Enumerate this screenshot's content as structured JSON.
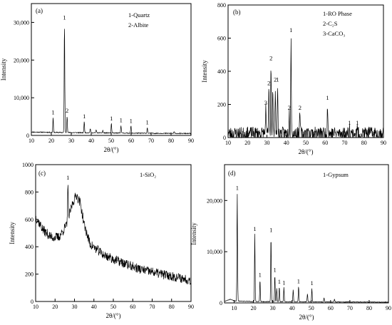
{
  "chart_data": [
    {
      "type": "line",
      "panel_label": "(a)",
      "legend": [
        "1-Quartz",
        "2-Albite"
      ],
      "xlabel": "2θ/(°)",
      "ylabel": "Intensity",
      "xlim": [
        10,
        90
      ],
      "ylim": [
        0,
        35000
      ],
      "xticks": [
        10,
        20,
        30,
        40,
        50,
        60,
        70,
        80,
        90
      ],
      "yticks": [
        0,
        10000,
        20000,
        30000
      ],
      "ytick_labels": [
        "0",
        "10,000",
        "20,000",
        "30,000"
      ],
      "baseline": [
        [
          10,
          900
        ],
        [
          20,
          800
        ],
        [
          40,
          700
        ],
        [
          60,
          600
        ],
        [
          90,
          500
        ]
      ],
      "noise": 120,
      "peaks": [
        {
          "x": 20.9,
          "y": 4800,
          "label": "1"
        },
        {
          "x": 26.6,
          "y": 30000,
          "label": "1"
        },
        {
          "x": 27.9,
          "y": 5300,
          "label": "2"
        },
        {
          "x": 36.5,
          "y": 3800,
          "label": "1"
        },
        {
          "x": 39.5,
          "y": 1800
        },
        {
          "x": 42.5,
          "y": 1500
        },
        {
          "x": 45.8,
          "y": 1300
        },
        {
          "x": 50.1,
          "y": 3200,
          "label": "1"
        },
        {
          "x": 54.9,
          "y": 2700,
          "label": "1"
        },
        {
          "x": 59.9,
          "y": 2600,
          "label": "1"
        },
        {
          "x": 68.1,
          "y": 2200,
          "label": "1"
        },
        {
          "x": 81.5,
          "y": 1000
        }
      ]
    },
    {
      "type": "line",
      "panel_label": "(b)",
      "legend": [
        "1-RO Phase",
        "2-C₂S",
        "3-CaCO₃"
      ],
      "xlabel": "2θ/(°)",
      "ylabel": "Intensity",
      "xlim": [
        10,
        90
      ],
      "ylim": [
        0,
        800
      ],
      "xticks": [
        10,
        20,
        30,
        40,
        50,
        60,
        70,
        80,
        90
      ],
      "yticks": [
        0,
        200,
        400,
        600,
        800
      ],
      "ytick_labels": [
        "0",
        "200",
        "400",
        "600",
        "800"
      ],
      "baseline": [
        [
          10,
          25
        ],
        [
          50,
          25
        ],
        [
          90,
          25
        ]
      ],
      "noise": 40,
      "peaks": [
        {
          "x": 29.4,
          "y": 180,
          "label": "3"
        },
        {
          "x": 31.0,
          "y": 300,
          "label": "2"
        },
        {
          "x": 32.1,
          "y": 450,
          "label": "2"
        },
        {
          "x": 33.0,
          "y": 330
        },
        {
          "x": 34.3,
          "y": 320,
          "label": "2"
        },
        {
          "x": 35.5,
          "y": 320,
          "label": "1"
        },
        {
          "x": 41.5,
          "y": 150,
          "label": "2"
        },
        {
          "x": 42.4,
          "y": 620,
          "label": "1"
        },
        {
          "x": 47.0,
          "y": 150,
          "label": "2"
        },
        {
          "x": 61.2,
          "y": 210,
          "label": "1"
        },
        {
          "x": 72.5,
          "y": 60,
          "label": "1"
        },
        {
          "x": 76.5,
          "y": 60,
          "label": "1"
        }
      ]
    },
    {
      "type": "line",
      "panel_label": "(c)",
      "legend": [
        "1-SiO₂"
      ],
      "xlabel": "2θ/(°)",
      "ylabel": "Intensity",
      "xlim": [
        10,
        90
      ],
      "ylim": [
        0,
        1000
      ],
      "xticks": [
        10,
        20,
        30,
        40,
        50,
        60,
        70,
        80,
        90
      ],
      "yticks": [
        0,
        200,
        400,
        600,
        800,
        1000
      ],
      "ytick_labels": [
        "0",
        "200",
        "400",
        "600",
        "800",
        "1000"
      ],
      "baseline": [
        [
          10,
          620
        ],
        [
          14,
          520
        ],
        [
          18,
          470
        ],
        [
          22,
          470
        ],
        [
          26,
          560
        ],
        [
          29,
          720
        ],
        [
          31,
          780
        ],
        [
          33,
          720
        ],
        [
          35,
          560
        ],
        [
          38,
          420
        ],
        [
          45,
          340
        ],
        [
          55,
          280
        ],
        [
          65,
          230
        ],
        [
          75,
          200
        ],
        [
          85,
          170
        ],
        [
          90,
          155
        ]
      ],
      "noise": 35,
      "peaks": [
        {
          "x": 26.6,
          "y": 870,
          "label": "1"
        }
      ]
    },
    {
      "type": "line",
      "panel_label": "(d)",
      "legend": [
        "1-Gypsum"
      ],
      "xlabel": "2θ/(°)",
      "ylabel": "Intensity",
      "xlim": [
        5,
        90
      ],
      "ylim": [
        0,
        27000
      ],
      "xticks": [
        10,
        20,
        30,
        40,
        50,
        60,
        70,
        80,
        90
      ],
      "yticks": [
        0,
        10000,
        20000
      ],
      "ytick_labels": [
        "0",
        "10,000",
        "20,000"
      ],
      "baseline": [
        [
          5,
          300
        ],
        [
          8,
          700
        ],
        [
          10,
          400
        ],
        [
          20,
          250
        ],
        [
          90,
          150
        ]
      ],
      "noise": 60,
      "peaks": [
        {
          "x": 11.6,
          "y": 21500,
          "label": "1"
        },
        {
          "x": 20.7,
          "y": 13500,
          "label": "1"
        },
        {
          "x": 23.4,
          "y": 4500,
          "label": "1"
        },
        {
          "x": 29.1,
          "y": 13300,
          "label": "1"
        },
        {
          "x": 31.1,
          "y": 5500,
          "label": "1"
        },
        {
          "x": 32.1,
          "y": 2800
        },
        {
          "x": 33.4,
          "y": 3200,
          "label": "1"
        },
        {
          "x": 35.8,
          "y": 3000,
          "label": "1"
        },
        {
          "x": 40.6,
          "y": 2600
        },
        {
          "x": 43.4,
          "y": 3300,
          "label": "1"
        },
        {
          "x": 48.0,
          "y": 1800
        },
        {
          "x": 50.3,
          "y": 2900,
          "label": "1"
        },
        {
          "x": 56.6,
          "y": 1000
        },
        {
          "x": 62.0,
          "y": 800
        }
      ]
    }
  ]
}
